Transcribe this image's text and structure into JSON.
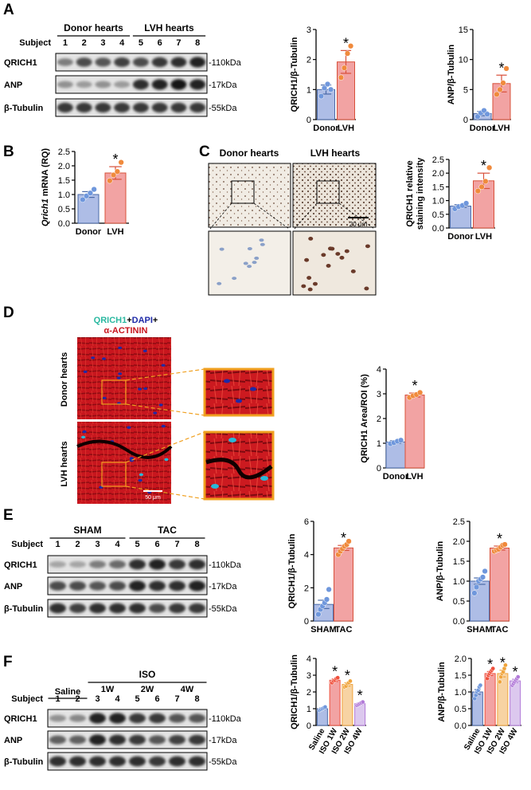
{
  "colors": {
    "ctrl_fill": "#aebde6",
    "ctrl_point": "#6f97dc",
    "ctrl_stroke": "#4a6aa8",
    "treat_fill": "#f2a3a3",
    "treat_point": "#f08a3c",
    "treat_stroke": "#d8503a",
    "w1_fill": "#f2a3a3",
    "w1_point": "#f0503c",
    "w2_fill": "#f7d3a3",
    "w2_point": "#f0a43c",
    "w4_fill": "#dcc8ee",
    "w4_point": "#b27ad8",
    "if_red": "#c8161e",
    "if_cyan": "#2ab8d8",
    "if_blue": "#1e2aa8",
    "zoom_border": "#f0a020"
  },
  "panels": {
    "A": {
      "letter": "A",
      "group_labels": [
        "Donor hearts",
        "LVH hearts"
      ],
      "subject_label": "Subject",
      "subjects": [
        "1",
        "2",
        "3",
        "4",
        "5",
        "6",
        "7",
        "8"
      ],
      "rows": [
        {
          "label": "QRICH1",
          "marker": "-110kDa",
          "intensity": [
            0.45,
            0.7,
            0.65,
            0.75,
            0.7,
            0.8,
            0.85,
            0.9
          ]
        },
        {
          "label": "ANP",
          "marker": "-17kDa",
          "intensity": [
            0.35,
            0.3,
            0.35,
            0.3,
            0.85,
            0.9,
            0.95,
            0.9
          ]
        },
        {
          "label": "β-Tubulin",
          "marker": "-55kDa",
          "intensity": [
            0.8,
            0.8,
            0.8,
            0.8,
            0.8,
            0.8,
            0.8,
            0.8
          ]
        }
      ]
    },
    "B": {
      "letter": "B"
    },
    "C": {
      "letter": "C",
      "labels": [
        "Donor hearts",
        "LVH hearts"
      ],
      "scale_bar": "20 μm"
    },
    "D": {
      "letter": "D",
      "legend": {
        "qrich1": "QRICH1",
        "plus1": "+",
        "dapi": "DAPI",
        "plus2": "+",
        "actinin": "α-ACTININ"
      },
      "row_labels": [
        "Donor hearts",
        "LVH hearts"
      ],
      "scale_bar": "50 μm"
    },
    "E": {
      "letter": "E",
      "group_labels": [
        "SHAM",
        "TAC"
      ],
      "subject_label": "Subject",
      "subjects": [
        "1",
        "2",
        "3",
        "4",
        "5",
        "6",
        "7",
        "8"
      ],
      "rows": [
        {
          "label": "QRICH1",
          "marker": "-110kDa",
          "intensity": [
            0.25,
            0.25,
            0.45,
            0.55,
            0.85,
            0.9,
            0.8,
            0.85
          ]
        },
        {
          "label": "ANP",
          "marker": "-17kDa",
          "intensity": [
            0.7,
            0.7,
            0.65,
            0.7,
            0.9,
            0.85,
            0.85,
            0.9
          ]
        },
        {
          "label": "β-Tubulin",
          "marker": "-55kDa",
          "intensity": [
            0.85,
            0.75,
            0.85,
            0.85,
            0.85,
            0.7,
            0.8,
            0.8
          ]
        }
      ]
    },
    "F": {
      "letter": "F",
      "group_labels": [
        "Saline",
        "ISO"
      ],
      "sub_groups": [
        "1W",
        "2W",
        "4W"
      ],
      "subject_label": "Subject",
      "subjects": [
        "1",
        "2",
        "3",
        "4",
        "5",
        "6",
        "7",
        "8"
      ],
      "rows": [
        {
          "label": "QRICH1",
          "marker": "-110kDa",
          "intensity": [
            0.35,
            0.4,
            0.9,
            0.9,
            0.8,
            0.8,
            0.65,
            0.65
          ]
        },
        {
          "label": "ANP",
          "marker": "-17kDa",
          "intensity": [
            0.6,
            0.6,
            0.9,
            0.85,
            0.8,
            0.65,
            0.75,
            0.8
          ]
        },
        {
          "label": "β-Tubulin",
          "marker": "-55kDa",
          "intensity": [
            0.85,
            0.85,
            0.85,
            0.85,
            0.85,
            0.8,
            0.85,
            0.85
          ]
        }
      ]
    }
  },
  "chart_data": [
    {
      "id": "A1",
      "type": "bar",
      "ylabel": "QRICH1/β-Tubulin",
      "ylim": [
        0,
        3
      ],
      "yticks": [
        0,
        1,
        2,
        3
      ],
      "categories": [
        "Donor",
        "LVH"
      ],
      "values": [
        1.0,
        1.92
      ],
      "errors": [
        0.15,
        0.38
      ],
      "points": [
        [
          0.78,
          1.05,
          1.18,
          1.0
        ],
        [
          1.4,
          1.72,
          2.2,
          2.45
        ]
      ],
      "significance": [
        "",
        "*"
      ],
      "xlabel_rotated": false
    },
    {
      "id": "A2",
      "type": "bar",
      "ylabel": "ANP/β-Tubulin",
      "ylim": [
        0,
        15
      ],
      "yticks": [
        0,
        5,
        10,
        15
      ],
      "categories": [
        "Donor",
        "LVH"
      ],
      "values": [
        1.0,
        6.0
      ],
      "errors": [
        0.35,
        1.4
      ],
      "points": [
        [
          0.5,
          1.1,
          1.5,
          0.9
        ],
        [
          4.2,
          5.0,
          6.1,
          8.5
        ]
      ],
      "significance": [
        "",
        "*"
      ],
      "xlabel_rotated": false
    },
    {
      "id": "B",
      "type": "bar",
      "ylabel": "Qrich1 mRNA (RQ)",
      "ylim": [
        0,
        2.5
      ],
      "yticks": [
        0,
        0.5,
        1.0,
        1.5,
        2.0,
        2.5
      ],
      "categories": [
        "Donor",
        "LVH"
      ],
      "values": [
        1.0,
        1.75
      ],
      "errors": [
        0.1,
        0.22
      ],
      "points": [
        [
          0.82,
          0.95,
          1.05,
          1.18
        ],
        [
          1.48,
          1.68,
          1.8,
          2.12
        ]
      ],
      "significance": [
        "",
        "*"
      ],
      "xlabel_rotated": false
    },
    {
      "id": "C",
      "type": "bar",
      "ylabel": "QRICH1 relative staining intensity",
      "ylim": [
        0,
        2.5
      ],
      "yticks": [
        0,
        0.5,
        1.0,
        1.5,
        2.0,
        2.5
      ],
      "categories": [
        "Donor",
        "LVH"
      ],
      "values": [
        0.8,
        1.72
      ],
      "errors": [
        0.05,
        0.28
      ],
      "points": [
        [
          0.7,
          0.78,
          0.82,
          0.9
        ],
        [
          1.35,
          1.5,
          1.7,
          2.2
        ]
      ],
      "significance": [
        "",
        "*"
      ],
      "xlabel_rotated": false
    },
    {
      "id": "D",
      "type": "bar",
      "ylabel": "QRICH1 Area/ROI (%)",
      "ylim": [
        0,
        4
      ],
      "yticks": [
        0,
        1,
        2,
        3,
        4
      ],
      "categories": [
        "Donor",
        "LVH"
      ],
      "values": [
        1.05,
        2.95
      ],
      "errors": [
        0.05,
        0.08
      ],
      "points": [
        [
          0.98,
          1.02,
          1.08,
          1.12
        ],
        [
          2.85,
          2.92,
          2.97,
          3.05
        ]
      ],
      "significance": [
        "",
        "*"
      ],
      "xlabel_rotated": false
    },
    {
      "id": "E1",
      "type": "bar",
      "ylabel": "QRICH1/β-Tubulin",
      "ylim": [
        0,
        6
      ],
      "yticks": [
        0,
        2,
        4,
        6
      ],
      "categories": [
        "SHAM",
        "TAC"
      ],
      "values": [
        1.0,
        4.4
      ],
      "errors": [
        0.25,
        0.15
      ],
      "points": [
        [
          0.4,
          0.7,
          0.9,
          1.1,
          1.3,
          1.9
        ],
        [
          4.0,
          4.2,
          4.35,
          4.5,
          4.6,
          4.8
        ]
      ],
      "significance": [
        "",
        "*"
      ],
      "xlabel_rotated": false
    },
    {
      "id": "E2",
      "type": "bar",
      "ylabel": "ANP/β-Tubulin",
      "ylim": [
        0,
        2.5
      ],
      "yticks": [
        0,
        0.5,
        1.0,
        1.5,
        2.0,
        2.5
      ],
      "categories": [
        "SHAM",
        "TAC"
      ],
      "values": [
        1.0,
        1.83
      ],
      "errors": [
        0.08,
        0.05
      ],
      "points": [
        [
          0.7,
          0.85,
          1.0,
          1.05,
          1.1,
          1.25
        ],
        [
          1.75,
          1.78,
          1.8,
          1.85,
          1.9,
          1.92
        ]
      ],
      "significance": [
        "",
        "*"
      ],
      "xlabel_rotated": false
    },
    {
      "id": "F1",
      "type": "bar",
      "ylabel": "QRICH1/β-Tubulin",
      "ylim": [
        0,
        4
      ],
      "yticks": [
        0,
        1,
        2,
        3,
        4
      ],
      "categories": [
        "Saline",
        "ISO 1W",
        "ISO 2W",
        "ISO 4W"
      ],
      "values": [
        1.0,
        2.7,
        2.45,
        1.3
      ],
      "errors": [
        0.05,
        0.08,
        0.1,
        0.05
      ],
      "points": [
        [
          0.9,
          0.95,
          1.0,
          1.05,
          1.1
        ],
        [
          2.55,
          2.65,
          2.7,
          2.8,
          2.85
        ],
        [
          2.3,
          2.35,
          2.5,
          2.55,
          2.65
        ],
        [
          1.2,
          1.25,
          1.3,
          1.35,
          1.4
        ]
      ],
      "significance": [
        "",
        "*",
        "*",
        "*"
      ],
      "xlabel_rotated": true
    },
    {
      "id": "F2",
      "type": "bar",
      "ylabel": "ANP/β-Tubulin",
      "ylim": [
        0,
        2.0
      ],
      "yticks": [
        0,
        0.5,
        1.0,
        1.5,
        2.0
      ],
      "categories": [
        "Saline",
        "ISO 1W",
        "ISO 2W",
        "ISO 4W"
      ],
      "values": [
        1.0,
        1.55,
        1.55,
        1.33
      ],
      "errors": [
        0.07,
        0.06,
        0.1,
        0.05
      ],
      "points": [
        [
          0.8,
          0.9,
          1.0,
          1.05,
          1.15,
          1.2
        ],
        [
          1.4,
          1.5,
          1.55,
          1.6,
          1.65,
          1.7
        ],
        [
          1.3,
          1.45,
          1.55,
          1.6,
          1.7,
          1.8
        ],
        [
          1.2,
          1.25,
          1.3,
          1.35,
          1.4,
          1.45
        ]
      ],
      "significance": [
        "",
        "*",
        "*",
        "*"
      ],
      "xlabel_rotated": true
    }
  ]
}
